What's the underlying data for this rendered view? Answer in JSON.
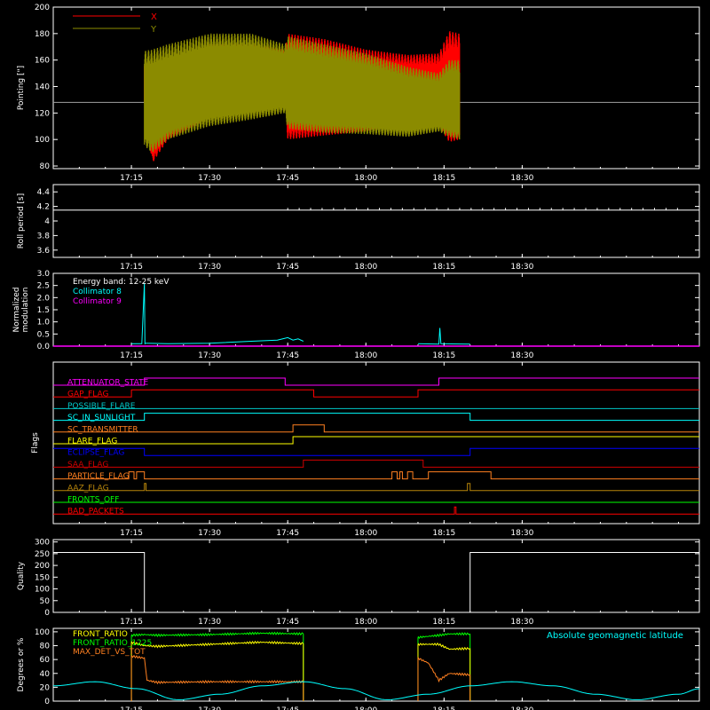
{
  "colors": {
    "bg": "#000000",
    "axis": "#ffffff",
    "red": "#ff0000",
    "olive": "#8b8b00",
    "gray": "#a0a0a0",
    "cyan": "#00ffff",
    "magenta": "#ff00ff",
    "green": "#00ff00",
    "yellow": "#ffff00",
    "orange": "#ff8020",
    "teal": "#00c8c8",
    "blue": "#0000ff",
    "brown": "#b8860b",
    "darkred": "#d00000",
    "lime": "#00ff00"
  },
  "time_axis": {
    "range_minutes": [
      0,
      124
    ],
    "ticks": [
      {
        "label": "17:15",
        "min": 15
      },
      {
        "label": "17:30",
        "min": 30
      },
      {
        "label": "17:45",
        "min": 45
      },
      {
        "label": "18:00",
        "min": 60
      },
      {
        "label": "18:15",
        "min": 75
      },
      {
        "label": "18:30",
        "min": 90
      }
    ]
  },
  "chart_data": [
    {
      "id": "pointing",
      "type": "line",
      "ylabel": "Pointing [\"]",
      "ylim": [
        78,
        200
      ],
      "yticks": [
        80,
        100,
        120,
        140,
        160,
        180,
        200
      ],
      "legend": [
        "X",
        "Y"
      ],
      "reference_line": 128,
      "series": [
        {
          "name": "X",
          "color": "red",
          "t": [
            17.5,
            19,
            22,
            30,
            38,
            44.5,
            45,
            52,
            60,
            68,
            74,
            76,
            78
          ],
          "hi": [
            160,
            140,
            150,
            172,
            172,
            168,
            180,
            176,
            168,
            164,
            165,
            182,
            180
          ],
          "lo": [
            128,
            82,
            100,
            116,
            125,
            128,
            100,
            103,
            106,
            112,
            110,
            98,
            100
          ]
        },
        {
          "name": "Y",
          "color": "olive",
          "t": [
            17.5,
            19,
            22,
            30,
            38,
            44.5,
            45,
            52,
            60,
            68,
            74,
            76,
            78
          ],
          "hi": [
            167,
            168,
            172,
            180,
            180,
            172,
            178,
            172,
            165,
            155,
            150,
            160,
            160
          ],
          "lo": [
            95,
            90,
            100,
            110,
            115,
            120,
            108,
            105,
            104,
            102,
            106,
            102,
            100
          ]
        }
      ]
    },
    {
      "id": "roll_period",
      "type": "line",
      "ylabel": "Roll period [s]",
      "ylim": [
        3.5,
        4.5
      ],
      "yticks": [
        3.6,
        3.8,
        4.0,
        4.2,
        4.4
      ],
      "series": [
        {
          "name": "",
          "color": "axis",
          "t": [
            0,
            124
          ],
          "v": [
            4.15,
            4.15
          ]
        }
      ]
    },
    {
      "id": "modulation",
      "type": "line",
      "ylabel": [
        "Normalized",
        "modulation"
      ],
      "ylim": [
        0,
        3.0
      ],
      "yticks": [
        0.0,
        0.5,
        1.0,
        1.5,
        2.0,
        2.5,
        3.0
      ],
      "ytick_labels": [
        "0.0",
        "0.5",
        "1.0",
        "1.5",
        "2.0",
        "2.5",
        "3.0"
      ],
      "legend": [
        "Energy band: 12-25 keV",
        "Collimator 8",
        "Collimator 9"
      ],
      "series": [
        {
          "name": "Collimator 8",
          "color": "cyan",
          "segments": [
            {
              "t": [
                15,
                17,
                17.5,
                17.6,
                17.8,
                22,
                30,
                38,
                43,
                45,
                46,
                47,
                48
              ],
              "v": [
                0.1,
                0.1,
                2.6,
                0.1,
                0.12,
                0.1,
                0.12,
                0.2,
                0.25,
                0.35,
                0.25,
                0.3,
                0.2
              ]
            },
            {
              "t": [
                70,
                74,
                74.2,
                74.4,
                80
              ],
              "v": [
                0.1,
                0.08,
                0.75,
                0.1,
                0.08
              ]
            }
          ]
        },
        {
          "name": "Collimator 9",
          "color": "magenta",
          "t": [
            0,
            124
          ],
          "v": [
            0.0,
            0.0
          ]
        }
      ]
    },
    {
      "id": "flags",
      "type": "step",
      "ylabel": "Flags",
      "flags": [
        {
          "name": "ATTENUATOR_STATE",
          "color": "magenta",
          "steps": [
            [
              0,
              0
            ],
            [
              17.5,
              1
            ],
            [
              44.5,
              0
            ],
            [
              74,
              1
            ],
            [
              124,
              1
            ]
          ]
        },
        {
          "name": "GAP_FLAG",
          "color": "red",
          "steps": [
            [
              0,
              0
            ],
            [
              15,
              1
            ],
            [
              50,
              0
            ],
            [
              70,
              1
            ],
            [
              124,
              1
            ]
          ]
        },
        {
          "name": "POSSIBLE_FLARE",
          "color": "teal",
          "steps": [
            [
              0,
              0
            ],
            [
              124,
              0
            ]
          ]
        },
        {
          "name": "SC_IN_SUNLIGHT",
          "color": "cyan",
          "steps": [
            [
              0,
              0
            ],
            [
              17.5,
              1
            ],
            [
              80,
              0
            ],
            [
              124,
              0
            ]
          ]
        },
        {
          "name": "SC_TRANSMITTER",
          "color": "orange",
          "steps": [
            [
              0,
              0
            ],
            [
              46,
              1
            ],
            [
              52,
              0
            ],
            [
              124,
              0
            ]
          ]
        },
        {
          "name": "FLARE_FLAG",
          "color": "yellow",
          "steps": [
            [
              0,
              0
            ],
            [
              46,
              1
            ],
            [
              124,
              1
            ]
          ]
        },
        {
          "name": "ECLIPSE_FLAG",
          "color": "blue",
          "steps": [
            [
              0,
              1
            ],
            [
              17.5,
              0
            ],
            [
              80,
              1
            ],
            [
              124,
              1
            ]
          ]
        },
        {
          "name": "SAA_FLAG",
          "color": "darkred",
          "steps": [
            [
              0,
              0
            ],
            [
              48,
              1
            ],
            [
              71,
              0
            ],
            [
              124,
              0
            ]
          ]
        },
        {
          "name": "PARTICLE_FLAG",
          "color": "orange",
          "steps": [
            [
              0,
              0
            ],
            [
              14.5,
              1
            ],
            [
              15.5,
              0
            ],
            [
              16,
              1
            ],
            [
              17.5,
              0
            ],
            [
              65,
              1
            ],
            [
              66,
              0
            ],
            [
              66.5,
              1
            ],
            [
              67,
              0
            ],
            [
              68,
              1
            ],
            [
              69,
              0
            ],
            [
              72,
              1
            ],
            [
              84,
              0
            ],
            [
              124,
              0
            ]
          ]
        },
        {
          "name": "AAZ_FLAG",
          "color": "brown",
          "steps": [
            [
              0,
              0
            ],
            [
              17.5,
              1
            ],
            [
              17.8,
              0
            ],
            [
              79.5,
              1
            ],
            [
              80,
              0
            ],
            [
              124,
              0
            ]
          ]
        },
        {
          "name": "FRONTS_OFF",
          "color": "lime",
          "steps": [
            [
              0,
              0
            ],
            [
              124,
              0
            ]
          ]
        },
        {
          "name": "BAD_PACKETS",
          "color": "red",
          "steps": [
            [
              0,
              0
            ],
            [
              77,
              1
            ],
            [
              77.3,
              0
            ],
            [
              124,
              0
            ]
          ]
        }
      ]
    },
    {
      "id": "quality",
      "type": "line",
      "ylabel": "Quality",
      "ylim": [
        0,
        310
      ],
      "yticks": [
        0,
        50,
        100,
        150,
        200,
        250,
        300
      ],
      "series": [
        {
          "name": "",
          "color": "axis",
          "t": [
            0,
            17.5,
            17.5,
            80,
            80,
            124
          ],
          "v": [
            255,
            255,
            0,
            0,
            255,
            255
          ]
        }
      ]
    },
    {
      "id": "ratios",
      "type": "line",
      "ylabel": "Degrees or %",
      "ylim": [
        0,
        105
      ],
      "yticks": [
        0,
        20,
        40,
        60,
        80,
        100
      ],
      "legend": [
        "FRONT_RATIO",
        "FRONT_RATIO_1225",
        "MAX_DET_VS_TOT"
      ],
      "annotation": "Absolute geomagnetic latitude",
      "series": [
        {
          "name": "FRONT_RATIO",
          "color": "green",
          "segments": [
            {
              "t": [
                15,
                17.5,
                20,
                30,
                40,
                48
              ],
              "v": [
                95,
                96,
                95,
                96,
                98,
                97
              ]
            },
            {
              "t": [
                70,
                74,
                76,
                80
              ],
              "v": [
                92,
                95,
                97,
                97
              ]
            }
          ]
        },
        {
          "name": "FRONT_RATIO_1225",
          "color": "yellow",
          "segments": [
            {
              "t": [
                15,
                17.5,
                20,
                30,
                40,
                48
              ],
              "v": [
                85,
                80,
                79,
                82,
                85,
                83
              ]
            },
            {
              "t": [
                70,
                74,
                76,
                80
              ],
              "v": [
                82,
                82,
                75,
                76
              ]
            }
          ]
        },
        {
          "name": "MAX_DET_VS_TOT",
          "color": "orange",
          "segments": [
            {
              "t": [
                15,
                17.5,
                18,
                20,
                30,
                40,
                44,
                48
              ],
              "v": [
                65,
                62,
                30,
                27,
                28,
                28,
                28,
                28
              ]
            },
            {
              "t": [
                70,
                72,
                74,
                76,
                80
              ],
              "v": [
                62,
                55,
                30,
                40,
                38
              ]
            }
          ]
        },
        {
          "name": "Absolute geomagnetic latitude",
          "color": "cyan",
          "t": [
            0,
            8,
            16,
            24,
            32,
            40,
            48,
            56,
            64,
            72,
            80,
            88,
            96,
            104,
            112,
            120,
            124
          ],
          "v": [
            22,
            28,
            18,
            2,
            10,
            22,
            28,
            18,
            2,
            10,
            22,
            28,
            22,
            10,
            2,
            10,
            18
          ]
        }
      ]
    }
  ]
}
